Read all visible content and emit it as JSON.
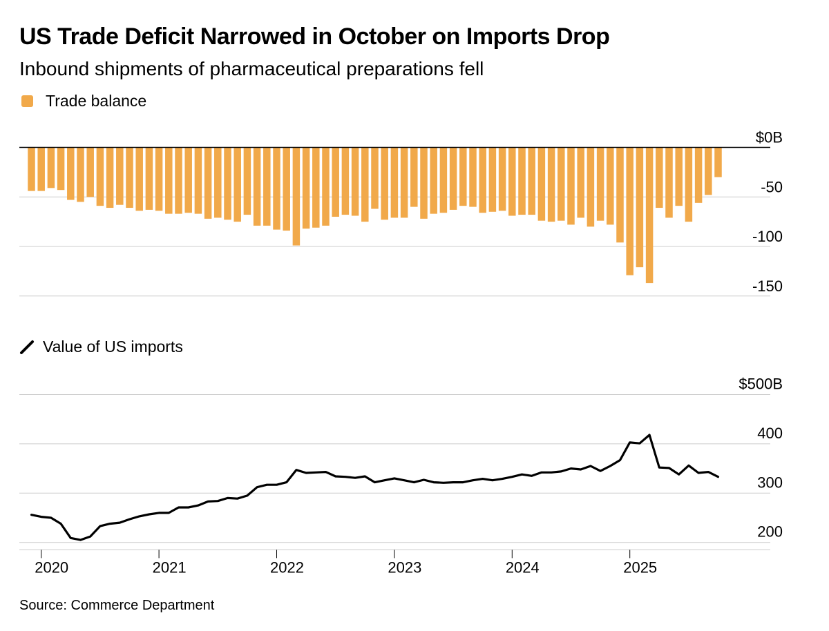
{
  "header": {
    "title": "US Trade Deficit Narrowed in October on Imports Drop",
    "subtitle": "Inbound shipments of pharmaceutical preparations fell"
  },
  "legend": {
    "bar_label": "Trade balance",
    "line_label": "Value of US imports"
  },
  "footer": {
    "source": "Source: Commerce Department"
  },
  "colors": {
    "bar": "#F1A94A",
    "line": "#000000",
    "grid": "#cccccc",
    "zero_line": "#000000"
  },
  "chart_data": [
    {
      "type": "bar",
      "title": "Trade balance",
      "start": "2019-12",
      "ylim": [
        -180,
        0
      ],
      "yticks": [
        0,
        -50,
        -100,
        -150
      ],
      "ytick_labels": [
        "$0B",
        "-50",
        "-100",
        "-150"
      ],
      "values": [
        -44,
        -44,
        -41,
        -43,
        -53,
        -55,
        -50,
        -59,
        -61,
        -58,
        -61,
        -64,
        -63,
        -64,
        -67,
        -67,
        -66,
        -67,
        -72,
        -71,
        -73,
        -75,
        -68,
        -79,
        -79,
        -83,
        -84,
        -99,
        -82,
        -81,
        -79,
        -70,
        -68,
        -69,
        -75,
        -62,
        -73,
        -71,
        -71,
        -60,
        -72,
        -67,
        -66,
        -63,
        -59,
        -60,
        -66,
        -65,
        -64,
        -69,
        -68,
        -68,
        -74,
        -75,
        -74,
        -78,
        -71,
        -80,
        -74,
        -78,
        -96,
        -129,
        -121,
        -137,
        -61,
        -71,
        -59,
        -75,
        -56,
        -48,
        -30
      ]
    },
    {
      "type": "line",
      "title": "Value of US imports",
      "start": "2019-12",
      "ylim": [
        185,
        500
      ],
      "yticks": [
        500,
        400,
        300,
        200
      ],
      "ytick_labels": [
        "$500B",
        "400",
        "300",
        "200"
      ],
      "x_tick_labels": [
        "2020",
        "2021",
        "2022",
        "2023",
        "2024",
        "2025"
      ],
      "values": [
        256,
        252,
        250,
        238,
        209,
        205,
        212,
        233,
        238,
        240,
        247,
        253,
        257,
        260,
        260,
        271,
        271,
        275,
        283,
        284,
        290,
        289,
        295,
        312,
        317,
        317,
        322,
        347,
        341,
        342,
        343,
        334,
        333,
        331,
        334,
        322,
        326,
        330,
        326,
        322,
        327,
        322,
        321,
        322,
        322,
        326,
        329,
        326,
        329,
        333,
        338,
        335,
        342,
        342,
        344,
        350,
        348,
        355,
        345,
        355,
        367,
        403,
        401,
        418,
        352,
        351,
        338,
        356,
        341,
        343,
        333
      ]
    }
  ]
}
